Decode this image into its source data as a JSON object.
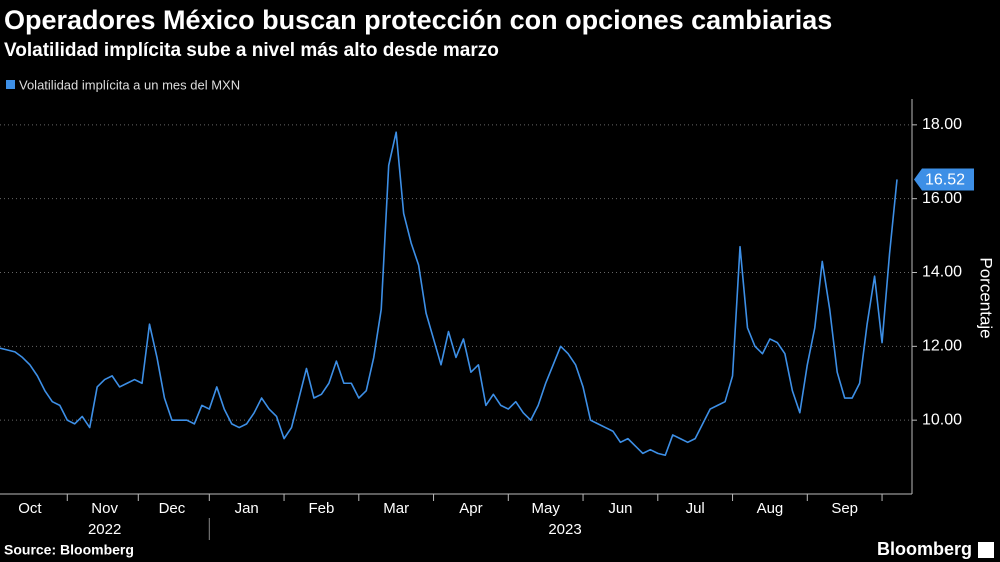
{
  "chart_data": {
    "type": "line",
    "title": "Operadores México buscan protección con opciones cambiarias",
    "subtitle": "Volatilidad implícita sube a nivel más alto desde marzo",
    "y_axis_label": "Porcentaje",
    "source": "Source: Bloomberg",
    "brand": "Bloomberg",
    "x_years": [
      "2022",
      "2023"
    ],
    "categories": [
      null,
      null,
      null,
      null,
      "Oct",
      null,
      null,
      null,
      null,
      null,
      null,
      null,
      null,
      null,
      "Nov",
      null,
      null,
      null,
      null,
      null,
      null,
      null,
      null,
      "Dec",
      null,
      null,
      null,
      null,
      null,
      null,
      null,
      null,
      null,
      "Jan",
      null,
      null,
      null,
      null,
      null,
      null,
      null,
      null,
      null,
      "Feb",
      null,
      null,
      null,
      null,
      null,
      null,
      null,
      null,
      null,
      "Mar",
      null,
      null,
      null,
      null,
      null,
      null,
      null,
      null,
      null,
      "Apr",
      null,
      null,
      null,
      null,
      null,
      null,
      null,
      null,
      null,
      "May",
      null,
      null,
      null,
      null,
      null,
      null,
      null,
      null,
      null,
      "Jun",
      null,
      null,
      null,
      null,
      null,
      null,
      null,
      null,
      null,
      "Jul",
      null,
      null,
      null,
      null,
      null,
      null,
      null,
      null,
      null,
      "Aug",
      null,
      null,
      null,
      null,
      null,
      null,
      null,
      null,
      null,
      "Sep",
      null,
      null,
      null,
      null,
      null,
      null,
      null
    ],
    "series": [
      {
        "name": "Volatilidad implícita a un mes del MXN",
        "color": "#3d8fe6",
        "values": [
          11.95,
          11.9,
          11.85,
          11.7,
          11.5,
          11.2,
          10.8,
          10.5,
          10.4,
          10.0,
          9.9,
          10.1,
          9.8,
          10.9,
          11.1,
          11.2,
          10.9,
          11.0,
          11.1,
          11.0,
          12.6,
          11.7,
          10.6,
          10.0,
          10.0,
          10.0,
          9.9,
          10.4,
          10.3,
          10.9,
          10.3,
          9.9,
          9.8,
          9.9,
          10.2,
          10.6,
          10.3,
          10.1,
          9.5,
          9.8,
          10.6,
          11.4,
          10.6,
          10.7,
          11.0,
          11.6,
          11.0,
          11.0,
          10.6,
          10.8,
          11.7,
          13.0,
          16.9,
          17.8,
          15.6,
          14.8,
          14.2,
          12.9,
          12.2,
          11.5,
          12.4,
          11.7,
          12.2,
          11.3,
          11.5,
          10.4,
          10.7,
          10.4,
          10.3,
          10.5,
          10.2,
          10.0,
          10.4,
          11.0,
          11.5,
          12.0,
          11.8,
          11.5,
          10.9,
          10.0,
          9.9,
          9.8,
          9.7,
          9.4,
          9.5,
          9.3,
          9.1,
          9.2,
          9.1,
          9.05,
          9.6,
          9.5,
          9.4,
          9.5,
          9.9,
          10.3,
          10.4,
          10.5,
          11.2,
          14.7,
          12.5,
          12.0,
          11.8,
          12.2,
          12.1,
          11.8,
          10.8,
          10.2,
          11.5,
          12.5,
          14.3,
          13.0,
          11.3,
          10.6,
          10.6,
          11.0,
          12.6,
          13.9,
          12.1,
          14.5,
          16.52
        ]
      }
    ],
    "ylim": [
      8,
      18.7
    ],
    "yticks": [
      {
        "value": 10,
        "label": "10.00"
      },
      {
        "value": 12,
        "label": "12.00"
      },
      {
        "value": 14,
        "label": "14.00"
      },
      {
        "value": 16,
        "label": "16.00"
      },
      {
        "value": 18,
        "label": "18.00"
      }
    ],
    "grid": true
  }
}
